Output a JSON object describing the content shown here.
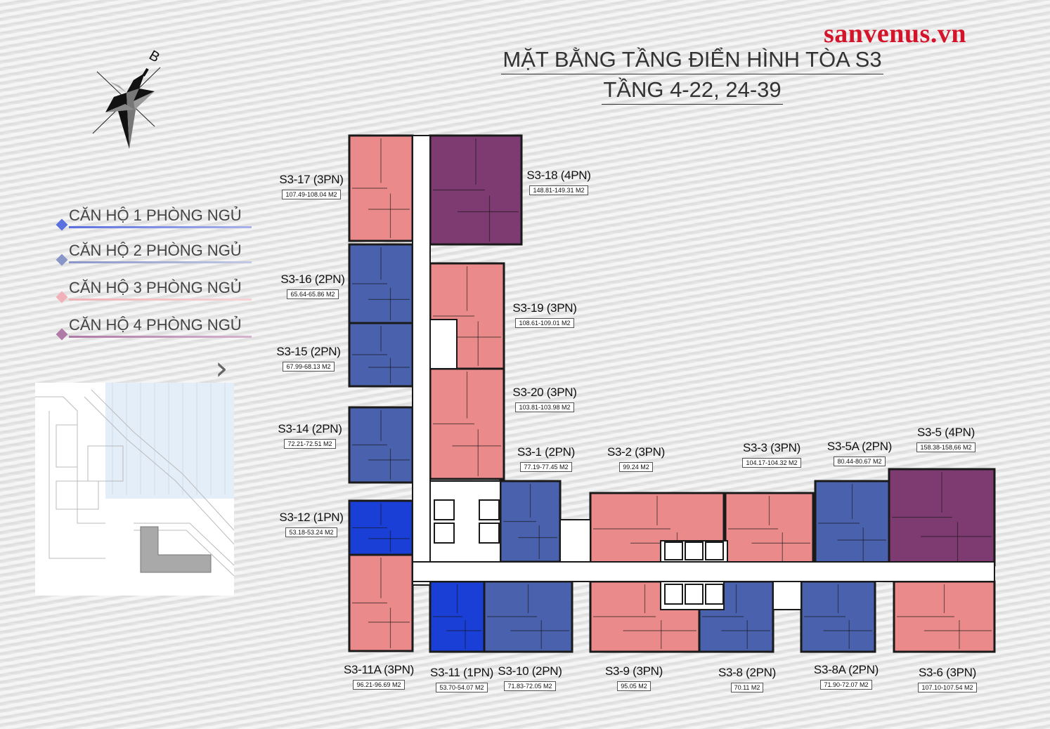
{
  "watermark": "sanvenus.vn",
  "title": {
    "line1": "MẶT BẰNG TẦNG ĐIỂN HÌNH TÒA S3",
    "line2": "TẦNG 4-22, 24-39"
  },
  "compass": {
    "label": "B"
  },
  "colors": {
    "1pn": "#1a3fd6",
    "2pn": "#4a62ad",
    "3pn": "#eb8a8a",
    "4pn": "#7d3b72",
    "wall": "#1a1a1a",
    "core": "#ffffff"
  },
  "legend": [
    {
      "label": "CĂN HỘ 1 PHÒNG NGỦ",
      "color": "#5b70e0"
    },
    {
      "label": "CĂN HỘ 2 PHÒNG NGỦ",
      "color": "#8a96c8"
    },
    {
      "label": "CĂN HỘ 3 PHÒNG NGỦ",
      "color": "#f0b2b8"
    },
    {
      "label": "CĂN HỘ 4 PHÒNG NGỦ",
      "color": "#b07aa6"
    }
  ],
  "units": [
    {
      "name": "S3-17 (3PN)",
      "area": "107.49-108.04 M2"
    },
    {
      "name": "S3-18 (4PN)",
      "area": "148.81-149.31 M2"
    },
    {
      "name": "S3-16 (2PN)",
      "area": "65.64-65.86 M2"
    },
    {
      "name": "S3-19 (3PN)",
      "area": "108.61-109.01 M2"
    },
    {
      "name": "S3-15 (2PN)",
      "area": "67.99-68.13 M2"
    },
    {
      "name": "S3-20 (3PN)",
      "area": "103.81-103.98 M2"
    },
    {
      "name": "S3-14 (2PN)",
      "area": "72.21-72.51 M2"
    },
    {
      "name": "S3-1 (2PN)",
      "area": "77.19-77.45 M2"
    },
    {
      "name": "S3-2 (3PN)",
      "area": "99.24 M2"
    },
    {
      "name": "S3-3 (3PN)",
      "area": "104.17-104.32 M2"
    },
    {
      "name": "S3-5A (2PN)",
      "area": "80.44-80.67 M2"
    },
    {
      "name": "S3-5 (4PN)",
      "area": "158.38-158,66 M2"
    },
    {
      "name": "S3-12 (1PN)",
      "area": "53.18-53.24 M2"
    },
    {
      "name": "S3-11A (3PN)",
      "area": "96.21-96.69 M2"
    },
    {
      "name": "S3-11 (1PN)",
      "area": "53.70-54.07 M2"
    },
    {
      "name": "S3-10 (2PN)",
      "area": "71.83-72.05 M2"
    },
    {
      "name": "S3-9 (3PN)",
      "area": "95.05 M2"
    },
    {
      "name": "S3-8 (2PN)",
      "area": "70.11 M2"
    },
    {
      "name": "S3-8A (2PN)",
      "area": "71.90-72.07 M2"
    },
    {
      "name": "S3-6 (3PN)",
      "area": "107.10-107.54 M2"
    }
  ]
}
